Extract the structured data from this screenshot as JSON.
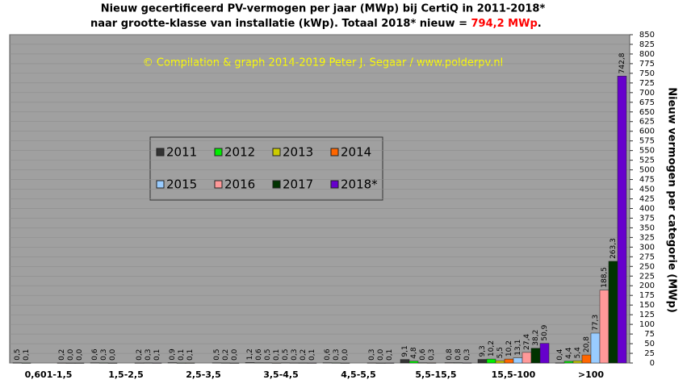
{
  "chart_data": {
    "type": "bar",
    "title": "Nieuw  gecertificeerd PV-vermogen per jaar (MWp) bij CertiQ in 2011-2018*",
    "subtitle": "naar grootte-klasse van installatie (kWp). Totaal 2018* nieuw = ",
    "subtitle_highlight": "794,2 MWp",
    "subtitle_end": ".",
    "annotation": "© Compilation  & graph 2014-2019 Peter J. Segaar / www.polderpv.nl",
    "y_label": "Nieuw vermogen per categorie (MWp)",
    "categories": [
      "0,601-1,5",
      "1,5-2,5",
      "2,5-3,5",
      "3,5-4,5",
      "4,5-5,5",
      "5,5-15,5",
      "15,5-100",
      ">100"
    ],
    "ylim": [
      0,
      850
    ],
    "yticks": [
      0,
      25,
      50,
      75,
      100,
      125,
      150,
      175,
      200,
      225,
      250,
      275,
      300,
      325,
      350,
      375,
      400,
      425,
      450,
      475,
      500,
      525,
      550,
      575,
      600,
      625,
      650,
      675,
      700,
      725,
      750,
      775,
      800,
      825,
      850
    ],
    "grid": true,
    "series": [
      {
        "name": "2011",
        "color": "#333333",
        "values": [
          0.5,
          0.6,
          0.9,
          1.2,
          0.6,
          9.1,
          9.3,
          0.4
        ],
        "value_labels": [
          "0,5",
          "0,6",
          "0,9",
          "1,2",
          "0,6",
          "9,1",
          "9,3",
          "0,4"
        ]
      },
      {
        "name": "2012",
        "color": "#00ee00",
        "values": [
          0.1,
          0.3,
          0.1,
          0.6,
          0.3,
          4.8,
          10.2,
          4.4
        ],
        "value_labels": [
          "0,1",
          "0,3",
          "0,1",
          "0,6",
          "0,3",
          "4,8",
          "10,2",
          "4,4"
        ]
      },
      {
        "name": "2013",
        "color": "#cccc00",
        "values": [
          null,
          0.0,
          0.1,
          0.5,
          0.0,
          0.6,
          5.5,
          5.4
        ],
        "value_labels": [
          null,
          "0,0",
          "0,1",
          "0,5",
          "0,0",
          "0,6",
          "5,5",
          "5,4"
        ]
      },
      {
        "name": "2014",
        "color": "#ff6600",
        "values": [
          null,
          null,
          null,
          0.1,
          null,
          0.3,
          10.2,
          20.8
        ],
        "value_labels": [
          null,
          null,
          null,
          "0,1",
          null,
          "0,3",
          "10,2",
          "20,8"
        ]
      },
      {
        "name": "2015",
        "color": "#99ccff",
        "values": [
          null,
          null,
          null,
          0.5,
          null,
          null,
          13.1,
          77.3
        ],
        "value_labels": [
          null,
          null,
          null,
          "0,5",
          null,
          null,
          "13,1",
          "77,3"
        ]
      },
      {
        "name": "2016",
        "color": "#ff9999",
        "values": [
          0.2,
          0.2,
          0.5,
          0.3,
          0.3,
          0.8,
          27.4,
          188.5
        ],
        "value_labels": [
          "0,2",
          "0,2",
          "0,5",
          "0,3",
          "0,3",
          "0,8",
          "27,4",
          "188,5"
        ]
      },
      {
        "name": "2017",
        "color": "#003300",
        "values": [
          0.0,
          0.3,
          0.2,
          0.2,
          0.0,
          0.8,
          38.2,
          263.3
        ],
        "value_labels": [
          "0,0",
          "0,3",
          "0,2",
          "0,2",
          "0,0",
          "0,8",
          "38,2",
          "263,3"
        ]
      },
      {
        "name": "2018*",
        "color": "#6600cc",
        "values": [
          0.0,
          0.1,
          0.0,
          0.1,
          0.1,
          0.3,
          50.9,
          742.8
        ],
        "value_labels": [
          "0,0",
          "0,1",
          "0,0",
          "0,1",
          "0,1",
          "0,3",
          "50,9",
          "742,8"
        ]
      }
    ]
  }
}
